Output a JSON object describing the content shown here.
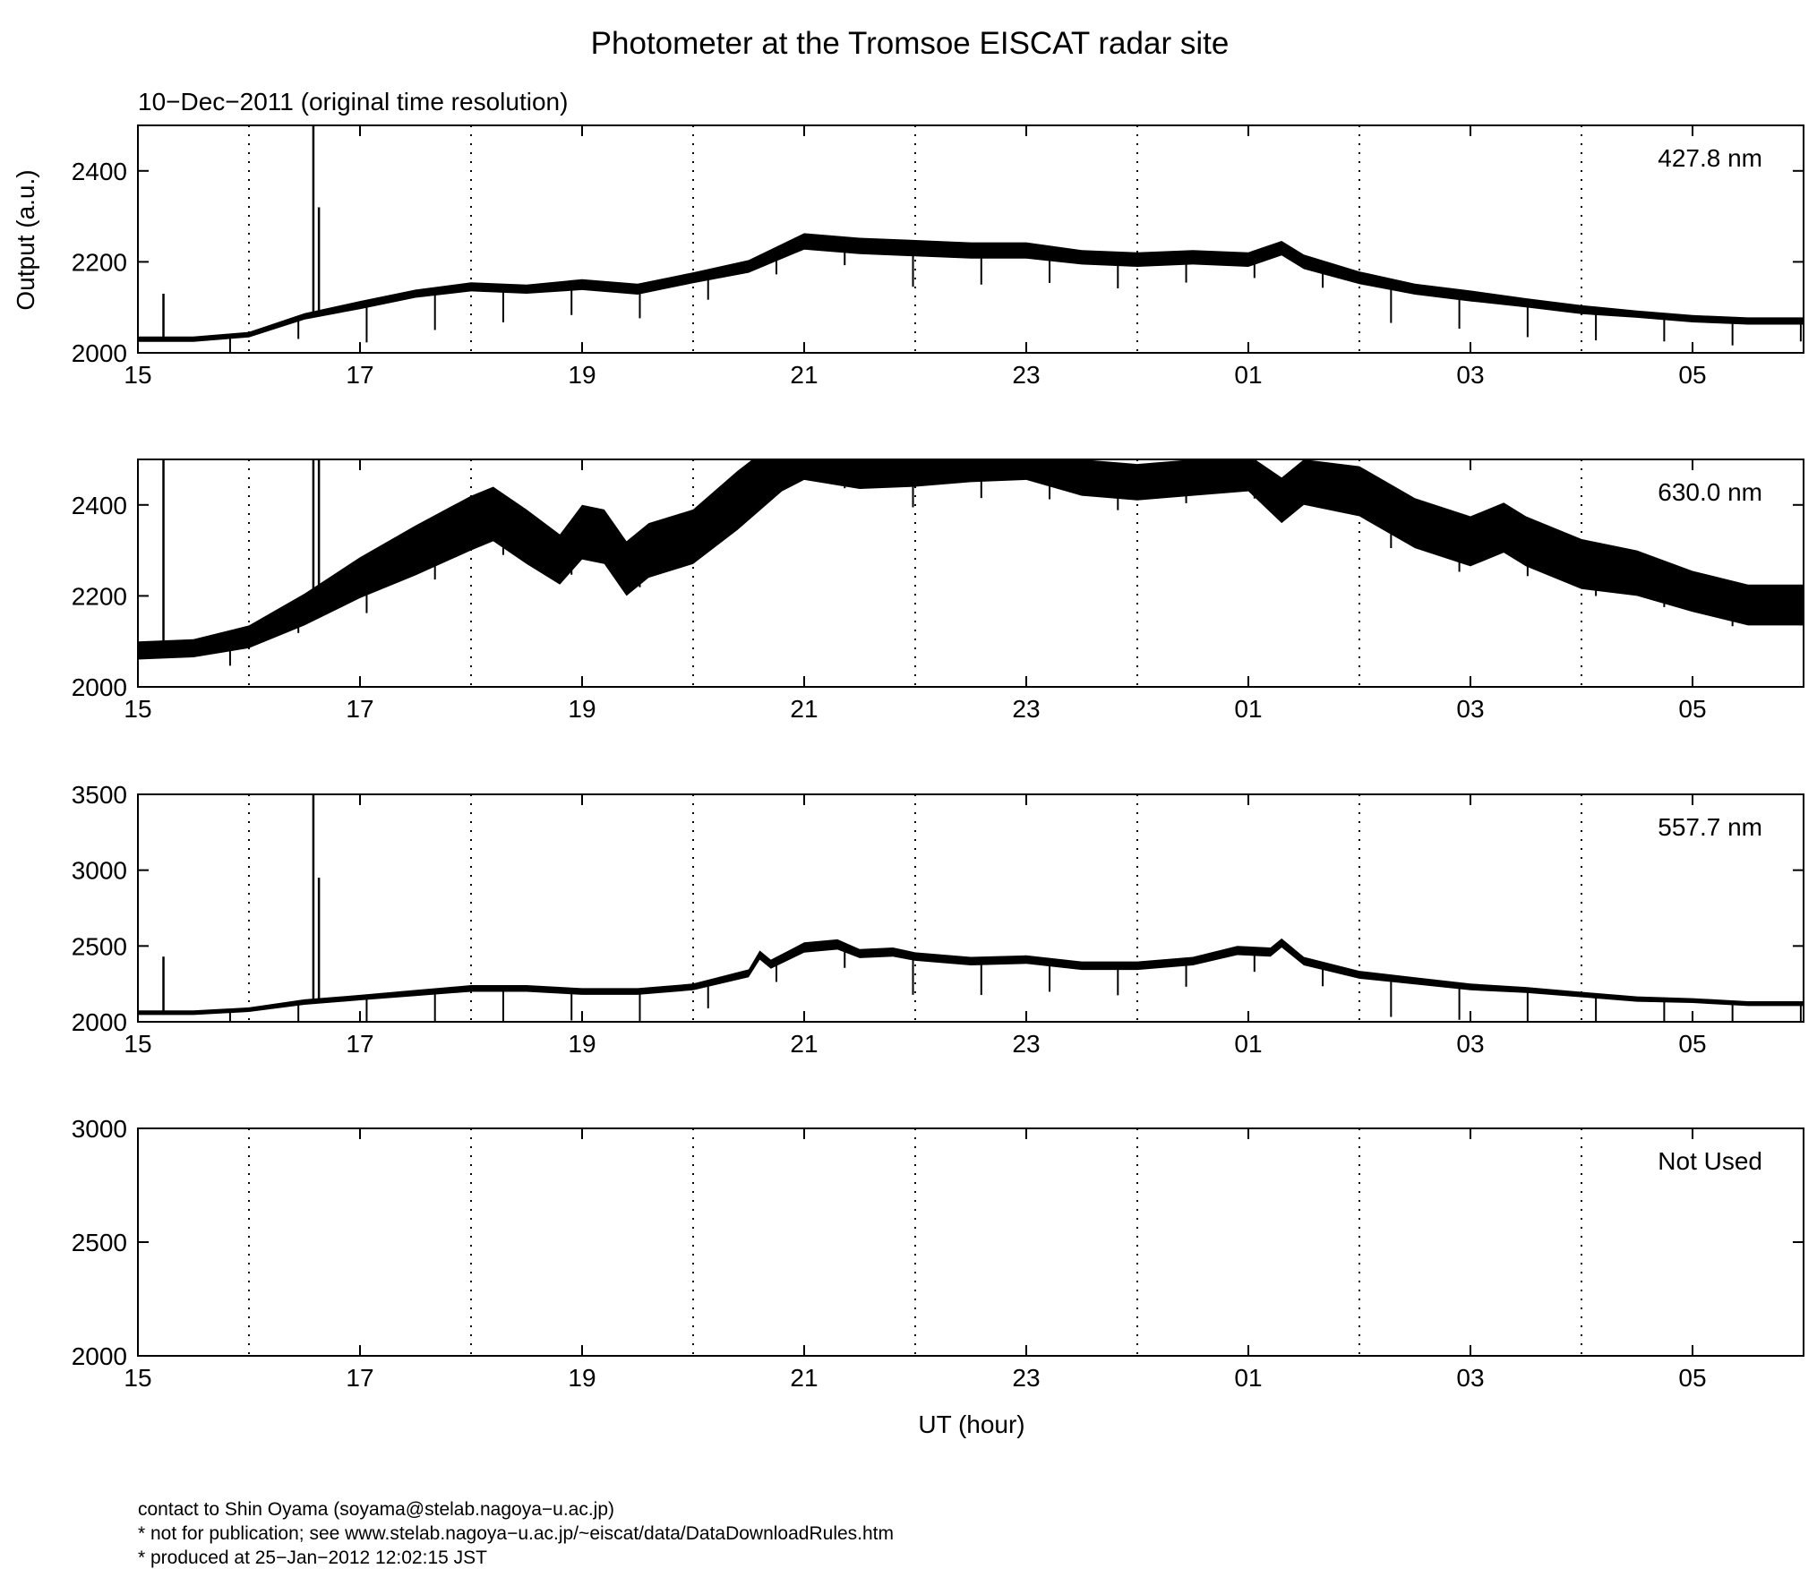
{
  "page_title": "Photometer at the Tromsoe EISCAT radar site",
  "date_label": "10−Dec−2011 (original time resolution)",
  "x_axis_label": "UT (hour)",
  "y_axis_label": "Output (a.u.)",
  "footer": {
    "line1": "contact to Shin Oyama (soyama@stelab.nagoya−u.ac.jp)",
    "line2": "* not for publication; see www.stelab.nagoya−u.ac.jp/~eiscat/data/DataDownloadRules.htm",
    "line3": "* produced at 25−Jan−2012 12:02:15 JST"
  },
  "chart_data": [
    {
      "type": "line",
      "label": "427.8 nm",
      "xlim": [
        15,
        30
      ],
      "ylim": [
        2000,
        2500
      ],
      "yticks": [
        2000,
        2200,
        2400
      ],
      "xticks": [
        "15",
        "17",
        "19",
        "21",
        "23",
        "01",
        "03",
        "05"
      ],
      "grid": "dotted vertical lines every hour",
      "x": [
        15,
        15.5,
        16,
        16.5,
        17,
        17.5,
        18,
        18.5,
        19,
        19.5,
        20,
        20.5,
        21,
        21.5,
        22,
        22.5,
        23,
        23.5,
        24,
        24.5,
        25,
        25.3,
        25.5,
        26,
        26.5,
        27,
        27.5,
        28,
        28.5,
        29,
        29.5,
        30
      ],
      "y": [
        2030,
        2030,
        2040,
        2080,
        2105,
        2130,
        2145,
        2140,
        2150,
        2140,
        2165,
        2190,
        2245,
        2235,
        2230,
        2225,
        2225,
        2210,
        2205,
        2210,
        2205,
        2230,
        2200,
        2165,
        2140,
        2125,
        2110,
        2095,
        2085,
        2075,
        2070,
        2070
      ],
      "band": [
        6,
        6,
        6,
        7,
        9,
        9,
        10,
        10,
        12,
        12,
        12,
        14,
        18,
        18,
        18,
        18,
        18,
        16,
        16,
        16,
        16,
        16,
        16,
        14,
        12,
        12,
        10,
        10,
        8,
        8,
        8,
        8
      ],
      "spikes": [
        [
          15.23,
          2130
        ],
        [
          16.58,
          2500
        ],
        [
          16.63,
          2320
        ]
      ]
    },
    {
      "type": "line",
      "label": "630.0 nm",
      "xlim": [
        15,
        30
      ],
      "ylim": [
        2000,
        2500
      ],
      "yticks": [
        2000,
        2200,
        2400
      ],
      "xticks": [
        "15",
        "17",
        "19",
        "21",
        "23",
        "01",
        "03",
        "05"
      ],
      "grid": "dotted vertical lines every hour",
      "x": [
        15,
        15.5,
        16,
        16.5,
        17,
        17.5,
        18,
        18.2,
        18.5,
        18.8,
        19,
        19.2,
        19.4,
        19.6,
        20,
        20.4,
        20.8,
        21,
        21.5,
        22,
        22.5,
        23,
        23.5,
        24,
        24.5,
        25,
        25.3,
        25.5,
        26,
        26.5,
        27,
        27.3,
        27.5,
        28,
        28.5,
        29,
        29.5,
        30
      ],
      "y": [
        2080,
        2085,
        2110,
        2170,
        2240,
        2300,
        2360,
        2380,
        2330,
        2280,
        2340,
        2330,
        2260,
        2300,
        2330,
        2410,
        2490,
        2500,
        2475,
        2480,
        2490,
        2490,
        2460,
        2450,
        2460,
        2470,
        2410,
        2450,
        2430,
        2360,
        2320,
        2350,
        2320,
        2270,
        2250,
        2210,
        2180,
        2180
      ],
      "band": [
        20,
        20,
        25,
        35,
        45,
        55,
        60,
        60,
        60,
        55,
        60,
        60,
        60,
        60,
        60,
        65,
        60,
        45,
        40,
        40,
        40,
        35,
        40,
        40,
        40,
        40,
        50,
        50,
        55,
        55,
        55,
        55,
        55,
        55,
        50,
        45,
        45,
        45
      ],
      "spikes": [
        [
          15.23,
          2500
        ],
        [
          16.58,
          2500
        ],
        [
          16.63,
          2500
        ]
      ]
    },
    {
      "type": "line",
      "label": "557.7 nm",
      "xlim": [
        15,
        30
      ],
      "ylim": [
        2000,
        3500
      ],
      "yticks": [
        2000,
        2500,
        3000,
        3500
      ],
      "xticks": [
        "15",
        "17",
        "19",
        "21",
        "23",
        "01",
        "03",
        "05"
      ],
      "grid": "dotted vertical lines every hour",
      "x": [
        15,
        15.5,
        16,
        16.5,
        17,
        17.5,
        18,
        18.5,
        19,
        19.5,
        20,
        20.5,
        20.6,
        20.7,
        21,
        21.3,
        21.5,
        21.8,
        22,
        22.5,
        23,
        23.5,
        24,
        24.5,
        24.9,
        25.2,
        25.3,
        25.5,
        26,
        26.5,
        27,
        27.5,
        28,
        28.5,
        29,
        29.5,
        30
      ],
      "y": [
        2060,
        2060,
        2080,
        2130,
        2160,
        2190,
        2220,
        2220,
        2200,
        2200,
        2230,
        2320,
        2440,
        2380,
        2490,
        2510,
        2450,
        2460,
        2430,
        2400,
        2410,
        2370,
        2370,
        2400,
        2470,
        2460,
        2520,
        2400,
        2310,
        2270,
        2230,
        2210,
        2180,
        2150,
        2140,
        2120,
        2120
      ],
      "band": [
        15,
        15,
        15,
        18,
        18,
        20,
        22,
        22,
        22,
        22,
        22,
        26,
        30,
        30,
        34,
        34,
        30,
        30,
        28,
        28,
        28,
        28,
        28,
        28,
        30,
        30,
        30,
        28,
        26,
        24,
        22,
        20,
        18,
        18,
        16,
        16,
        16
      ],
      "spikes": [
        [
          15.23,
          2430
        ],
        [
          16.58,
          3500
        ],
        [
          16.63,
          2950
        ]
      ]
    },
    {
      "type": "line",
      "label": "Not Used",
      "xlim": [
        15,
        30
      ],
      "ylim": [
        2000,
        3000
      ],
      "yticks": [
        2000,
        2500,
        3000
      ],
      "xticks": [
        "15",
        "17",
        "19",
        "21",
        "23",
        "01",
        "03",
        "05"
      ],
      "grid": "dotted vertical lines every hour",
      "x": [],
      "y": [],
      "band": [],
      "spikes": []
    }
  ]
}
